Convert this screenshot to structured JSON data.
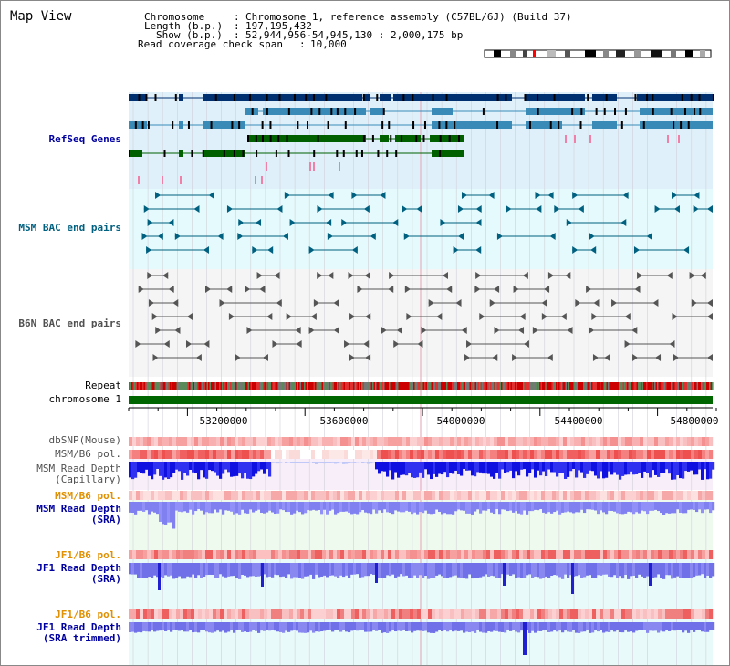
{
  "panel": {
    "title": "Map View"
  },
  "header": {
    "chromosome_label": "Chromosome",
    "chromosome_value": "Chromosome 1, reference assembly (C57BL/6J) (Build 37)",
    "length_label": "Length (b.p.)",
    "length_value": "197,195,432",
    "show_label": "Show (b.p.)",
    "show_value": "52,944,956-54,945,130 : 2,000,175 bp",
    "coverage_label": "Read coverage check span",
    "coverage_value": "10,000",
    "separator": ":"
  },
  "tracks": {
    "refseq": {
      "label": "RefSeq Genes",
      "color": "#0000a0",
      "bg": "#dff0fa"
    },
    "msm_bac": {
      "label": "MSM BAC end pairs",
      "color": "#006080",
      "bg": "#e4fafc"
    },
    "b6n_bac": {
      "label": "B6N BAC end pairs",
      "color": "#505050",
      "bg": "#f5f5f5"
    },
    "repeat": {
      "label": "Repeat"
    },
    "chromosome": {
      "label": "chromosome 1",
      "color": "#006600"
    },
    "dbsnp": {
      "label": "dbSNP(Mouse)",
      "color": "#505050"
    },
    "msm_b6_pol": {
      "label": "MSM/B6 pol.",
      "color": "#505050"
    },
    "msm_depth_cap": {
      "label": "MSM Read Depth\n(Capillary)",
      "color": "#505050"
    },
    "msm_b6_pol2": {
      "label": "MSM/B6 pol.",
      "color": "#e09000"
    },
    "msm_depth_sra": {
      "label": "MSM Read Depth\n(SRA)",
      "color": "#0000a0"
    },
    "jf1_b6_pol": {
      "label": "JF1/B6 pol.",
      "color": "#e09000"
    },
    "jf1_depth_sra": {
      "label": "JF1 Read Depth\n(SRA)",
      "color": "#0000a0"
    },
    "jf1_b6_pol2": {
      "label": "JF1/B6 pol.",
      "color": "#e09000"
    },
    "jf1_depth_trim": {
      "label": "JF1 Read Depth\n(SRA trimmed)",
      "color": "#0000a0"
    }
  },
  "axis": {
    "ticks": [
      "53200000",
      "53600000",
      "54000000",
      "54400000",
      "54800000"
    ]
  }
}
